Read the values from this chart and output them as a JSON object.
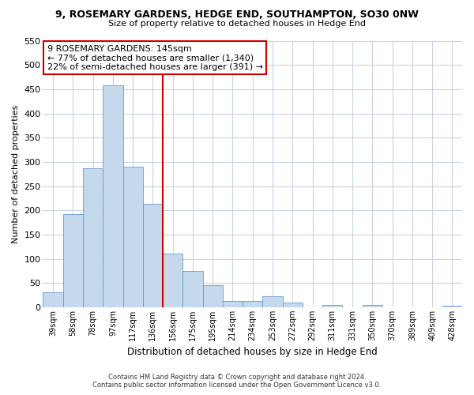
{
  "title": "9, ROSEMARY GARDENS, HEDGE END, SOUTHAMPTON, SO30 0NW",
  "subtitle": "Size of property relative to detached houses in Hedge End",
  "xlabel": "Distribution of detached houses by size in Hedge End",
  "ylabel": "Number of detached properties",
  "bar_color": "#c5d9ed",
  "bar_edge_color": "#6699cc",
  "categories": [
    "39sqm",
    "58sqm",
    "78sqm",
    "97sqm",
    "117sqm",
    "136sqm",
    "156sqm",
    "175sqm",
    "195sqm",
    "214sqm",
    "234sqm",
    "253sqm",
    "272sqm",
    "292sqm",
    "311sqm",
    "331sqm",
    "350sqm",
    "370sqm",
    "389sqm",
    "409sqm",
    "428sqm"
  ],
  "values": [
    30,
    192,
    287,
    458,
    290,
    213,
    110,
    74,
    46,
    13,
    13,
    22,
    9,
    0,
    5,
    0,
    5,
    0,
    0,
    0,
    3
  ],
  "ylim": [
    0,
    550
  ],
  "yticks": [
    0,
    50,
    100,
    150,
    200,
    250,
    300,
    350,
    400,
    450,
    500,
    550
  ],
  "vline_x": 5.5,
  "vline_color": "#cc0000",
  "annotation_title": "9 ROSEMARY GARDENS: 145sqm",
  "annotation_line1": "← 77% of detached houses are smaller (1,340)",
  "annotation_line2": "22% of semi-detached houses are larger (391) →",
  "footnote1": "Contains HM Land Registry data © Crown copyright and database right 2024.",
  "footnote2": "Contains public sector information licensed under the Open Government Licence v3.0.",
  "background_color": "#ffffff",
  "grid_color": "#c8d4e4"
}
